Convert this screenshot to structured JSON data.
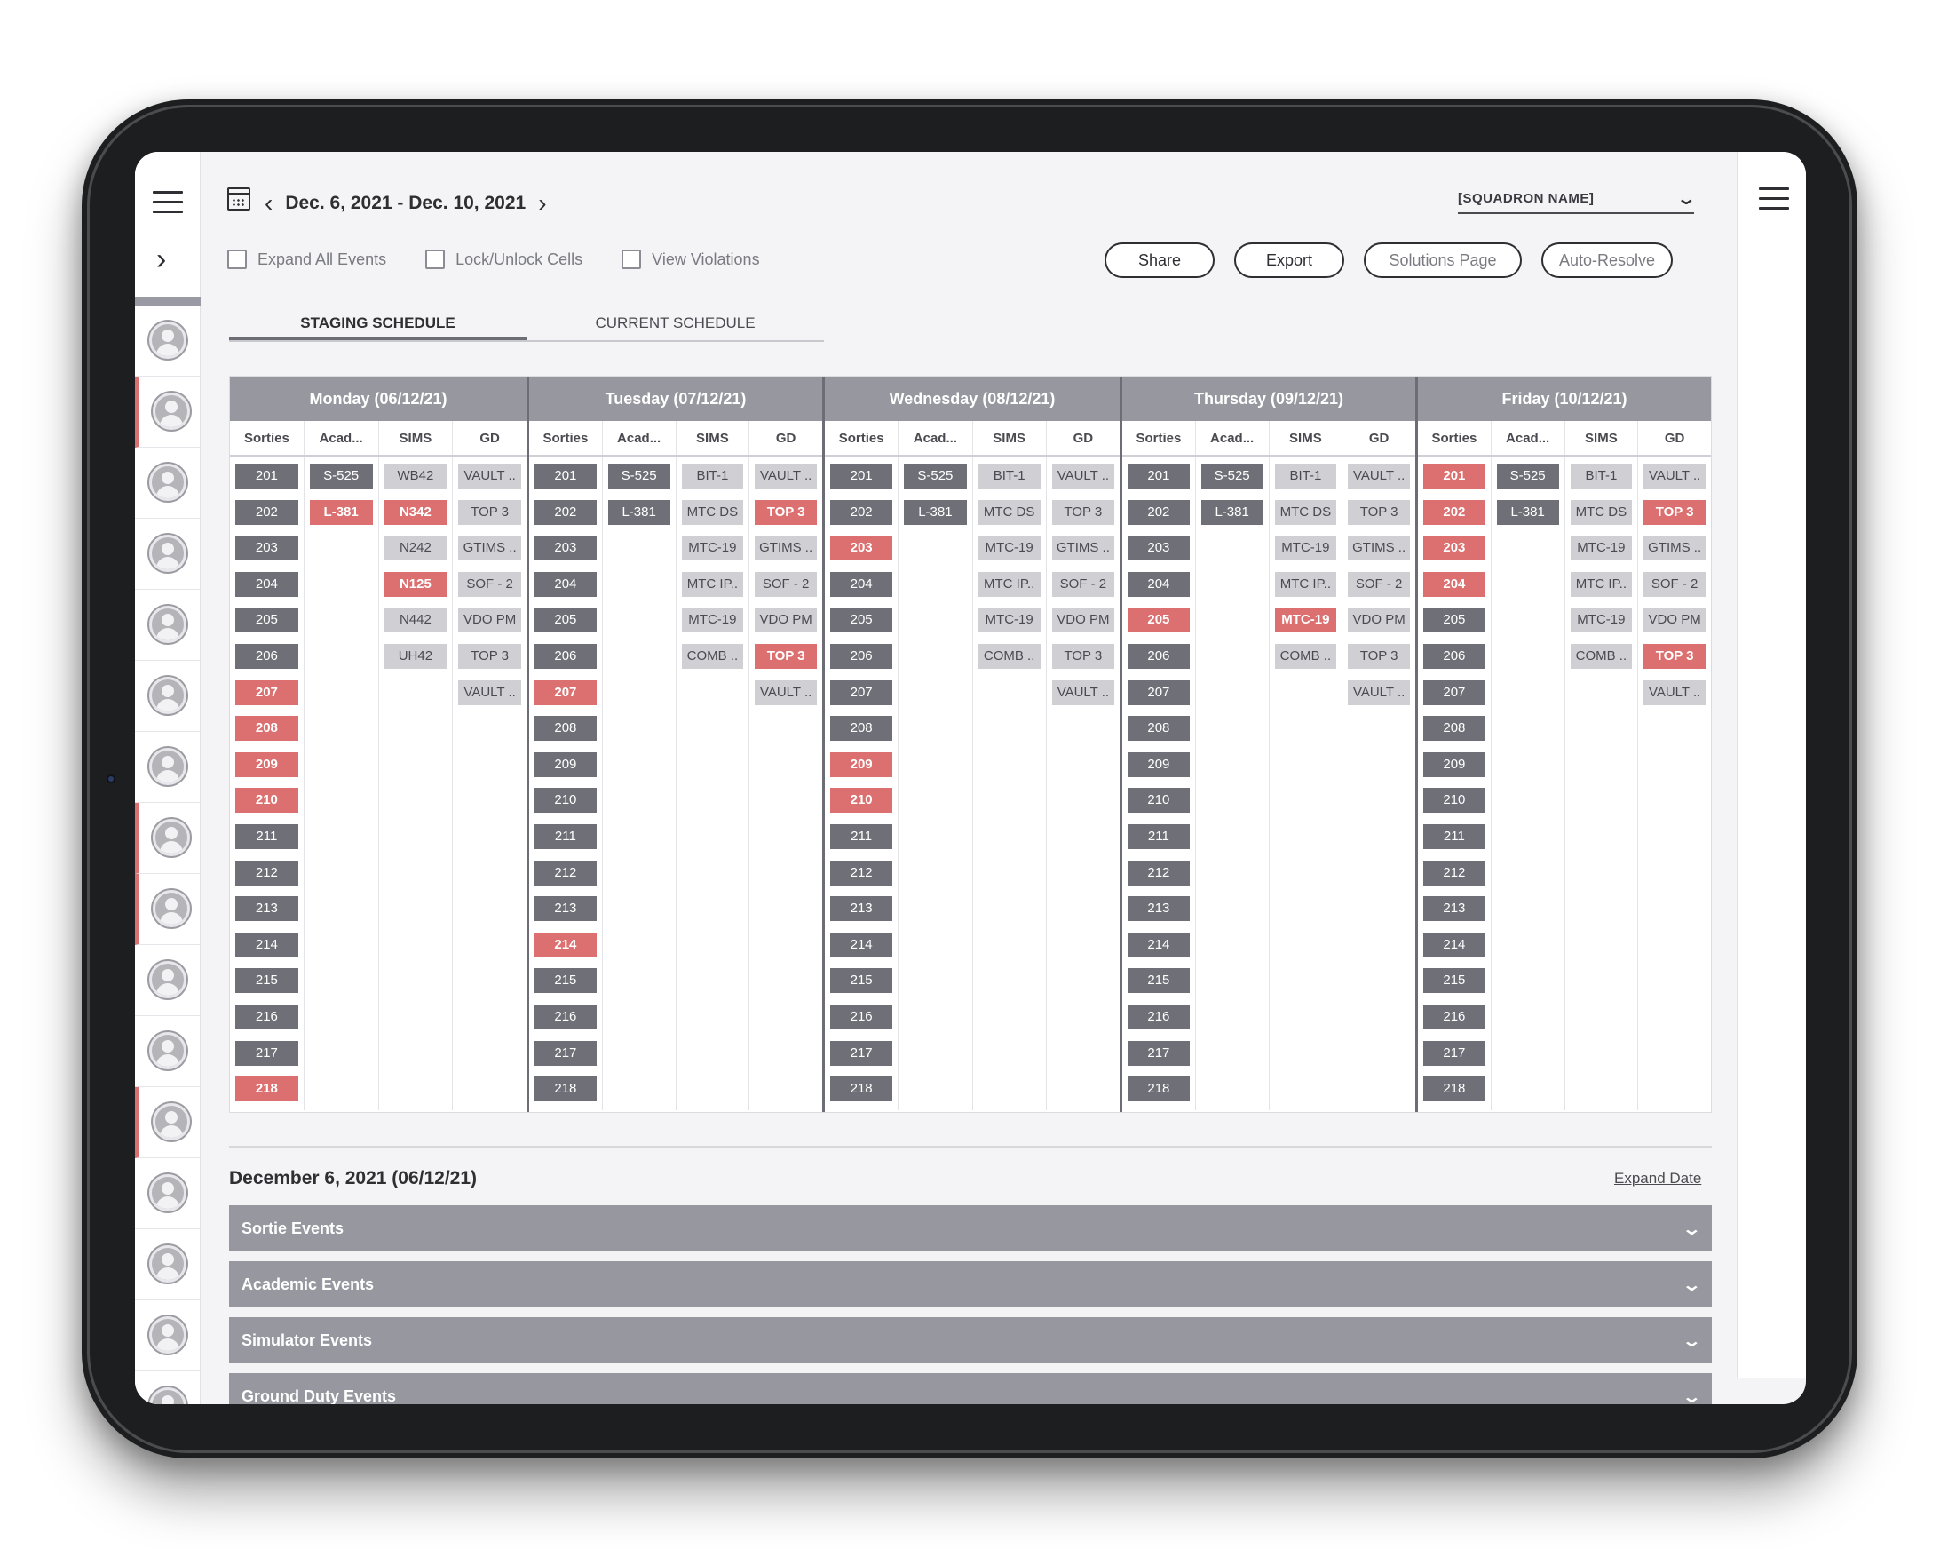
{
  "header": {
    "date_range": "Dec. 6, 2021 - Dec. 10, 2021",
    "squadron": "[SQUADRON NAME]"
  },
  "options": [
    {
      "label": "Expand All Events"
    },
    {
      "label": "Lock/Unlock Cells"
    },
    {
      "label": "View Violations"
    }
  ],
  "actions": [
    {
      "label": "Share"
    },
    {
      "label": "Export"
    },
    {
      "label": "Solutions Page"
    },
    {
      "label": "Auto-Resolve"
    }
  ],
  "tabs": [
    {
      "label": "STAGING SCHEDULE",
      "active": true
    },
    {
      "label": "CURRENT SCHEDULE",
      "active": false
    }
  ],
  "column_headers": [
    "Sorties",
    "Acad...",
    "SIMS",
    "GD"
  ],
  "days": [
    {
      "label": "Monday (06/12/21)",
      "sorties": {
        "values": [
          "201",
          "202",
          "203",
          "204",
          "205",
          "206",
          "207",
          "208",
          "209",
          "210",
          "211",
          "212",
          "213",
          "214",
          "215",
          "216",
          "217",
          "218"
        ],
        "flagged": [
          "207",
          "208",
          "209",
          "210",
          "218"
        ]
      },
      "acad": [
        {
          "t": "S-525",
          "k": "s"
        },
        {
          "t": "L-381",
          "k": "r"
        }
      ],
      "sims": [
        {
          "t": "WB42",
          "k": "l"
        },
        {
          "t": "N342",
          "k": "r"
        },
        {
          "t": "N242",
          "k": "l"
        },
        {
          "t": "N125",
          "k": "r"
        },
        {
          "t": "N442",
          "k": "l"
        },
        {
          "t": "UH42",
          "k": "l"
        }
      ],
      "gd": [
        {
          "t": "VAULT ..",
          "k": "l"
        },
        {
          "t": "TOP 3",
          "k": "l"
        },
        {
          "t": "GTIMS ..",
          "k": "l"
        },
        {
          "t": "SOF - 2",
          "k": "l"
        },
        {
          "t": "VDO PM",
          "k": "l"
        },
        {
          "t": "TOP 3",
          "k": "l"
        },
        {
          "t": "VAULT ..",
          "k": "l"
        }
      ]
    },
    {
      "label": "Tuesday (07/12/21)",
      "sorties": {
        "values": [
          "201",
          "202",
          "203",
          "204",
          "205",
          "206",
          "207",
          "208",
          "209",
          "210",
          "211",
          "212",
          "213",
          "214",
          "215",
          "216",
          "217",
          "218"
        ],
        "flagged": [
          "207",
          "214"
        ]
      },
      "acad": [
        {
          "t": "S-525",
          "k": "s"
        },
        {
          "t": "L-381",
          "k": "s"
        }
      ],
      "sims": [
        {
          "t": "BIT-1",
          "k": "l"
        },
        {
          "t": "MTC DS",
          "k": "l"
        },
        {
          "t": "MTC-19",
          "k": "l"
        },
        {
          "t": "MTC IP..",
          "k": "l"
        },
        {
          "t": "MTC-19",
          "k": "l"
        },
        {
          "t": "COMB ..",
          "k": "l"
        }
      ],
      "gd": [
        {
          "t": "VAULT ..",
          "k": "l"
        },
        {
          "t": "TOP 3",
          "k": "r"
        },
        {
          "t": "GTIMS ..",
          "k": "l"
        },
        {
          "t": "SOF - 2",
          "k": "l"
        },
        {
          "t": "VDO PM",
          "k": "l"
        },
        {
          "t": "TOP 3",
          "k": "r"
        },
        {
          "t": "VAULT ..",
          "k": "l"
        }
      ]
    },
    {
      "label": "Wednesday (08/12/21)",
      "sorties": {
        "values": [
          "201",
          "202",
          "203",
          "204",
          "205",
          "206",
          "207",
          "208",
          "209",
          "210",
          "211",
          "212",
          "213",
          "214",
          "215",
          "216",
          "217",
          "218"
        ],
        "flagged": [
          "203",
          "209",
          "210"
        ]
      },
      "acad": [
        {
          "t": "S-525",
          "k": "s"
        },
        {
          "t": "L-381",
          "k": "s"
        }
      ],
      "sims": [
        {
          "t": "BIT-1",
          "k": "l"
        },
        {
          "t": "MTC DS",
          "k": "l"
        },
        {
          "t": "MTC-19",
          "k": "l"
        },
        {
          "t": "MTC IP..",
          "k": "l"
        },
        {
          "t": "MTC-19",
          "k": "l"
        },
        {
          "t": "COMB ..",
          "k": "l"
        }
      ],
      "gd": [
        {
          "t": "VAULT ..",
          "k": "l"
        },
        {
          "t": "TOP 3",
          "k": "l"
        },
        {
          "t": "GTIMS ..",
          "k": "l"
        },
        {
          "t": "SOF - 2",
          "k": "l"
        },
        {
          "t": "VDO PM",
          "k": "l"
        },
        {
          "t": "TOP 3",
          "k": "l"
        },
        {
          "t": "VAULT ..",
          "k": "l"
        }
      ]
    },
    {
      "label": "Thursday (09/12/21)",
      "sorties": {
        "values": [
          "201",
          "202",
          "203",
          "204",
          "205",
          "206",
          "207",
          "208",
          "209",
          "210",
          "211",
          "212",
          "213",
          "214",
          "215",
          "216",
          "217",
          "218"
        ],
        "flagged": [
          "205"
        ]
      },
      "acad": [
        {
          "t": "S-525",
          "k": "s"
        },
        {
          "t": "L-381",
          "k": "s"
        }
      ],
      "sims": [
        {
          "t": "BIT-1",
          "k": "l"
        },
        {
          "t": "MTC DS",
          "k": "l"
        },
        {
          "t": "MTC-19",
          "k": "l"
        },
        {
          "t": "MTC IP..",
          "k": "l"
        },
        {
          "t": "MTC-19",
          "k": "r"
        },
        {
          "t": "COMB ..",
          "k": "l"
        }
      ],
      "gd": [
        {
          "t": "VAULT ..",
          "k": "l"
        },
        {
          "t": "TOP 3",
          "k": "l"
        },
        {
          "t": "GTIMS ..",
          "k": "l"
        },
        {
          "t": "SOF - 2",
          "k": "l"
        },
        {
          "t": "VDO PM",
          "k": "l"
        },
        {
          "t": "TOP 3",
          "k": "l"
        },
        {
          "t": "VAULT ..",
          "k": "l"
        }
      ]
    },
    {
      "label": "Friday (10/12/21)",
      "sorties": {
        "values": [
          "201",
          "202",
          "203",
          "204",
          "205",
          "206",
          "207",
          "208",
          "209",
          "210",
          "211",
          "212",
          "213",
          "214",
          "215",
          "216",
          "217",
          "218"
        ],
        "flagged": [
          "201",
          "202",
          "203",
          "204"
        ]
      },
      "acad": [
        {
          "t": "S-525",
          "k": "s"
        },
        {
          "t": "L-381",
          "k": "s"
        }
      ],
      "sims": [
        {
          "t": "BIT-1",
          "k": "l"
        },
        {
          "t": "MTC DS",
          "k": "l"
        },
        {
          "t": "MTC-19",
          "k": "l"
        },
        {
          "t": "MTC IP..",
          "k": "l"
        },
        {
          "t": "MTC-19",
          "k": "l"
        },
        {
          "t": "COMB ..",
          "k": "l"
        }
      ],
      "gd": [
        {
          "t": "VAULT ..",
          "k": "l"
        },
        {
          "t": "TOP 3",
          "k": "r"
        },
        {
          "t": "GTIMS ..",
          "k": "l"
        },
        {
          "t": "SOF - 2",
          "k": "l"
        },
        {
          "t": "VDO PM",
          "k": "l"
        },
        {
          "t": "TOP 3",
          "k": "r"
        },
        {
          "t": "VAULT ..",
          "k": "l"
        }
      ]
    }
  ],
  "detail": {
    "date_title": "December 6, 2021 (06/12/21)",
    "expand_label": "Expand Date",
    "sections": [
      {
        "label": "Sortie Events"
      },
      {
        "label": "Academic Events"
      },
      {
        "label": "Simulator Events"
      },
      {
        "label": "Ground Duty Events"
      }
    ]
  },
  "roster": {
    "flagged_rows": [
      1,
      7,
      8,
      11
    ]
  }
}
